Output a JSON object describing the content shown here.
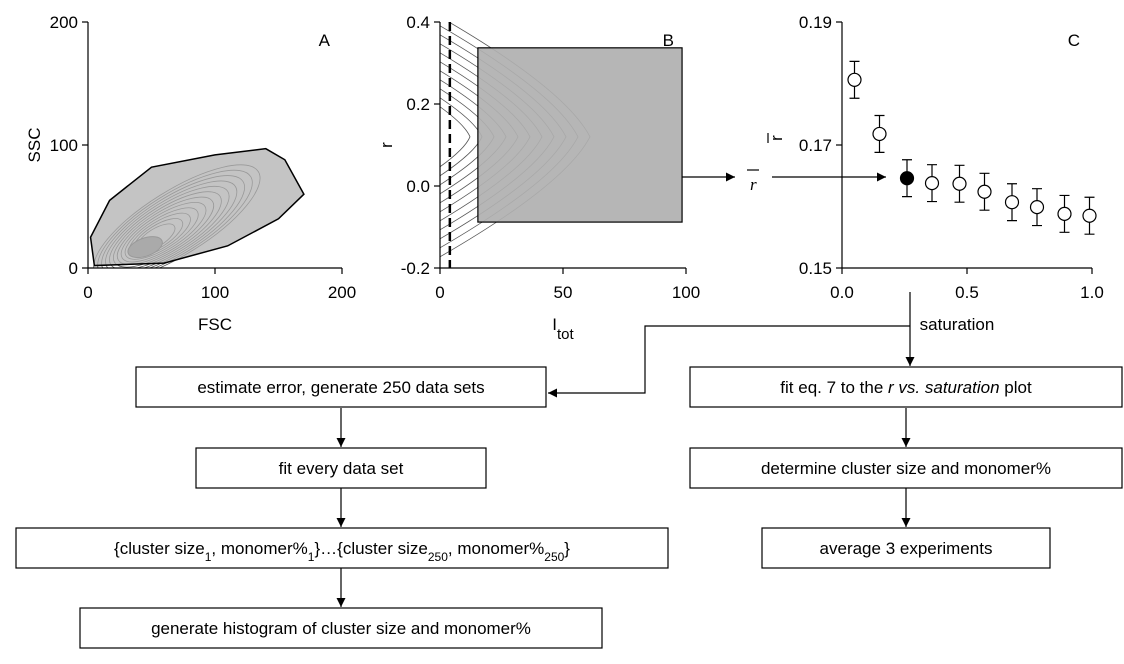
{
  "chart_data": [
    {
      "type": "contour",
      "label": "A",
      "xlabel": "FSC",
      "ylabel": "SSC",
      "xlim": [
        0,
        200
      ],
      "ylim": [
        0,
        200
      ],
      "xticks": [
        0,
        100,
        200
      ],
      "yticks": [
        0,
        100,
        200
      ],
      "gate": {
        "x": [
          5,
          2,
          17,
          50,
          100,
          140,
          155,
          170,
          150,
          110,
          60
        ],
        "y": [
          2,
          25,
          55,
          82,
          92,
          97,
          88,
          60,
          40,
          18,
          4
        ]
      },
      "gate_color": "#b0b0b0"
    },
    {
      "type": "contour",
      "label": "B",
      "xlabel": "I",
      "xlabel_sub": "tot",
      "ylabel": "r",
      "xlim": [
        0,
        100
      ],
      "ylim": [
        -0.2,
        0.4
      ],
      "xticks": [
        0,
        50,
        100
      ],
      "yticks": [
        -0.2,
        {
          "value": 0,
          "label": "0.0"
        },
        0.2,
        0.4
      ],
      "gate": {
        "x": [
          15.4,
          98.4
        ],
        "y": [
          -0.088,
          0.337
        ]
      },
      "gate_color": "#b0b0b0",
      "threshold": 4
    },
    {
      "type": "scatter",
      "label": "C",
      "xlabel": "saturation",
      "ylabel": "r",
      "annotation": "r",
      "xlim": [
        0,
        1
      ],
      "ylim": [
        0.15,
        0.19
      ],
      "xticks": [
        {
          "value": 0,
          "label": "0.0"
        },
        0.5,
        {
          "value": 1,
          "label": "1.0"
        }
      ],
      "yticks": [
        0.15,
        0.17,
        0.19
      ],
      "x": [
        0.05,
        0.15,
        0.26,
        0.36,
        0.47,
        0.57,
        0.68,
        0.78,
        0.89,
        0.99
      ],
      "values": [
        0.1806,
        0.1718,
        0.1646,
        0.1638,
        0.1637,
        0.1624,
        0.1607,
        0.1599,
        0.1588,
        0.1585
      ],
      "errors": [
        0.003,
        0.003,
        0.003,
        0.003,
        0.003,
        0.003,
        0.003,
        0.003,
        0.003,
        0.003
      ],
      "highlight": 2
    }
  ],
  "flowchart": {
    "nodes": [
      {
        "parts": [
          {
            "text": "estimate error, generate 250 data sets"
          }
        ]
      },
      {
        "parts": [
          {
            "text": "fit every data set"
          }
        ]
      },
      {
        "parts": [
          {
            "text": "{cluster size"
          },
          {
            "text": "1",
            "sub": true
          },
          {
            "text": ", monomer%"
          },
          {
            "text": "1",
            "sub": true
          },
          {
            "text": "}…{cluster size"
          },
          {
            "text": "250",
            "sub": true
          },
          {
            "text": ", monomer%"
          },
          {
            "text": "250",
            "sub": true
          },
          {
            "text": "}"
          }
        ]
      },
      {
        "parts": [
          {
            "text": "generate histogram of cluster size and monomer%"
          }
        ]
      },
      {
        "parts": [
          {
            "text": "fit eq. 7 to the "
          },
          {
            "text": "r vs. saturation",
            "italic": true
          },
          {
            "text": " plot"
          }
        ]
      },
      {
        "parts": [
          {
            "text": "determine cluster size and monomer%"
          }
        ]
      },
      {
        "parts": [
          {
            "text": "average 3 experiments"
          }
        ]
      }
    ]
  }
}
